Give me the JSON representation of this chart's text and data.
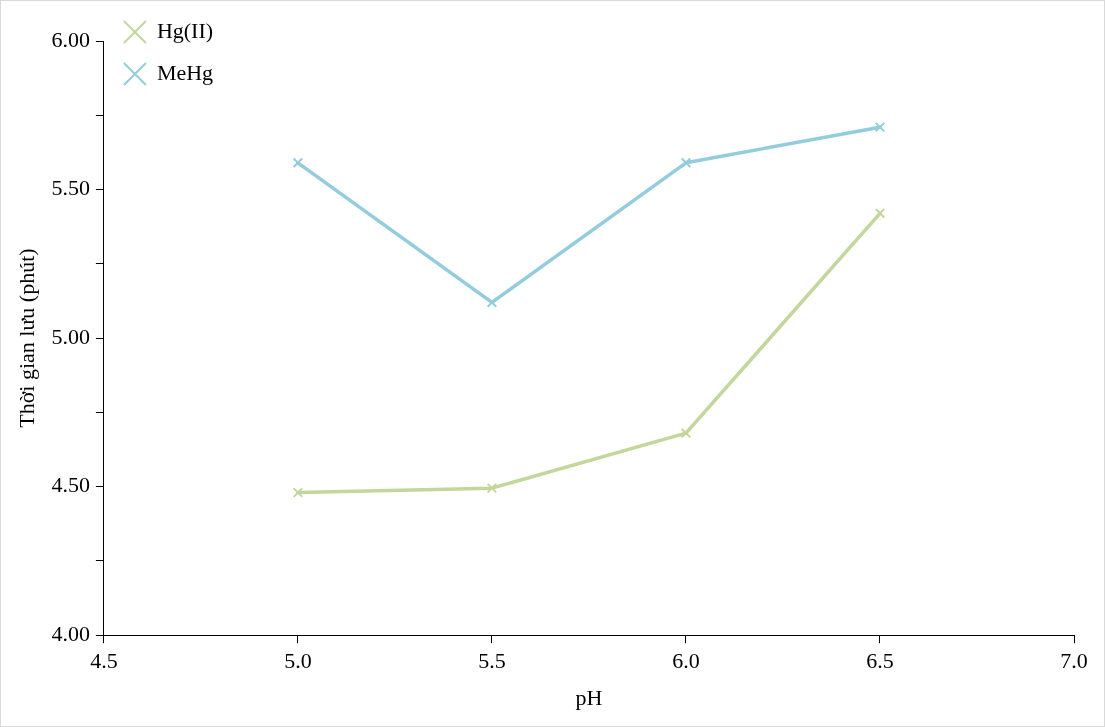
{
  "chart_data": {
    "type": "line",
    "xlabel": "pH",
    "ylabel": "Thời gian lưu (phút)",
    "xlim": [
      4.5,
      7.0
    ],
    "xticks": [
      {
        "value": 4.5,
        "label": "4.5"
      },
      {
        "value": 5.0,
        "label": "5.0"
      },
      {
        "value": 5.5,
        "label": "5.5"
      },
      {
        "value": 6.0,
        "label": "6.0"
      },
      {
        "value": 6.5,
        "label": "6.5"
      },
      {
        "value": 7.0,
        "label": "7.0"
      }
    ],
    "ylim": [
      4.0,
      6.0
    ],
    "yticks": [
      {
        "value": 4.0,
        "label": "4.00"
      },
      {
        "value": 4.25,
        "label": null
      },
      {
        "value": 4.5,
        "label": "4.50"
      },
      {
        "value": 4.75,
        "label": null
      },
      {
        "value": 5.0,
        "label": "5.00"
      },
      {
        "value": 5.25,
        "label": null
      },
      {
        "value": 5.5,
        "label": "5.50"
      },
      {
        "value": 5.75,
        "label": null
      },
      {
        "value": 6.0,
        "label": "6.00"
      }
    ],
    "x": [
      5.0,
      5.5,
      6.0,
      6.5
    ],
    "series": [
      {
        "name": "Hg(II)",
        "color": "#c3d69b",
        "marker": "cross",
        "values": [
          4.48,
          4.495,
          4.68,
          5.42
        ]
      },
      {
        "name": "MeHg",
        "color": "#93cddd",
        "marker": "cross",
        "values": [
          5.59,
          5.12,
          5.59,
          5.71
        ]
      }
    ],
    "grid": false,
    "legend": "top left",
    "line_style": "solid"
  }
}
